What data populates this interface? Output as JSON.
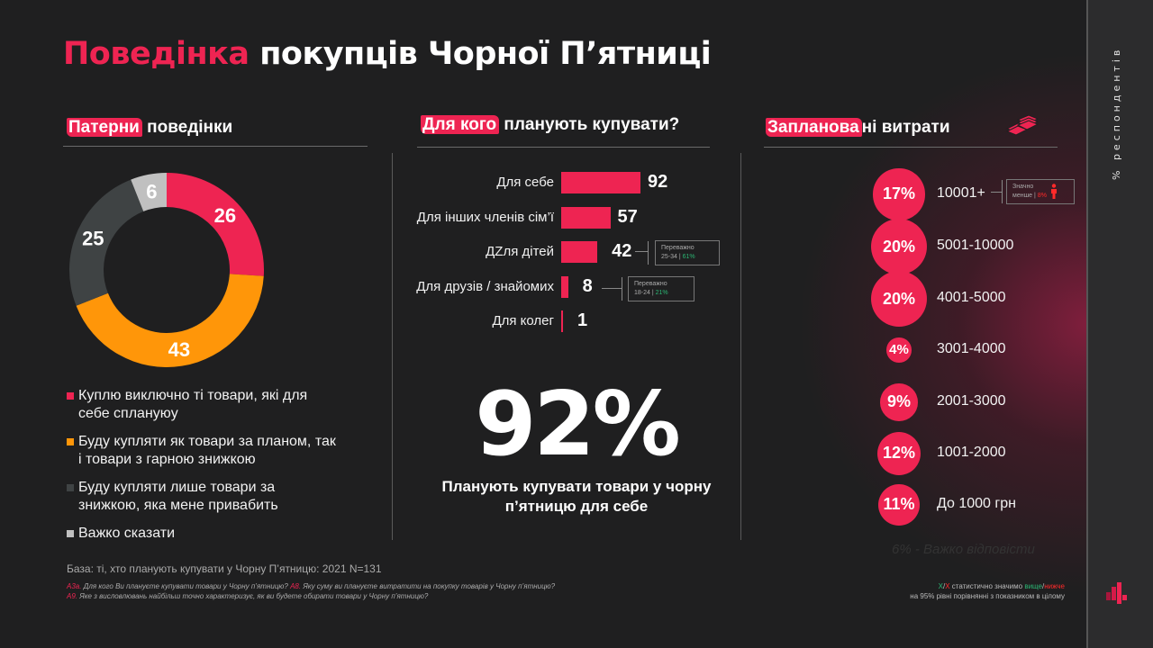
{
  "title": {
    "accent": "Поведінка",
    "rest": " покупців Чорної П’ятниці"
  },
  "side_label": "% респондентів",
  "colors": {
    "accent": "#ee2452",
    "orange": "#ff9609",
    "dark_gray": "#3f4344",
    "light_gray": "#c0c0c0",
    "green": "#2bb673",
    "red": "#ff2a2a"
  },
  "sections": {
    "patterns": {
      "highlight": "Патерни",
      "rest": " поведінки"
    },
    "for_whom": {
      "highlight": "Для кого",
      "rest": " планують  купувати?"
    },
    "spend": {
      "highlight": "Запланова",
      "rest": "ні витрати"
    }
  },
  "chart_data": [
    {
      "type": "pie",
      "title": "Патерни поведінки",
      "donut": true,
      "categories": [
        "Куплю  виключно  ті товари, які для себе сплануюу",
        "Буду купляти  як товари за планом, так і товари з гарною знижкою",
        "Буду купляти  лише  товари за знижкою,  яка мене привабить",
        "Важко сказати"
      ],
      "values": [
        26,
        43,
        25,
        6
      ],
      "colors": [
        "#ee2452",
        "#ff9609",
        "#3f4344",
        "#c0c0c0"
      ],
      "legend_position": "bottom"
    },
    {
      "type": "bar",
      "title": "Для кого планують купувати?",
      "orientation": "horizontal",
      "categories": [
        "Для себе",
        "Для інших  членів сім’ї",
        "ДZля дітей",
        "Для друзів / знайомих",
        "Для колег"
      ],
      "values": [
        92,
        57,
        42,
        8,
        1
      ],
      "xlim": [
        0,
        100
      ]
    },
    {
      "type": "scatter",
      "title": "Заплановані витрати",
      "subtype": "bubble",
      "categories": [
        "10001+",
        "5001-10000",
        "4001-5000",
        "3001-4000",
        "2001-3000",
        "1001-2000",
        "До 1000 грн"
      ],
      "values": [
        17,
        20,
        20,
        4,
        9,
        12,
        11
      ],
      "unit": "%",
      "annotation": "6% - Важко відповісти"
    }
  ],
  "legend": [
    {
      "text": "Куплю  виключно  ті товари, які для себе сплануюу",
      "color": "#ee2452"
    },
    {
      "text": "Буду купляти  як товари за планом, так і товари з гарною знижкою",
      "color": "#ff9609"
    },
    {
      "text": "Буду купляти  лише  товари за знижкою,  яка мене привабить",
      "color": "#3f4344"
    },
    {
      "text": "Важко сказати",
      "color": "#c0c0c0"
    }
  ],
  "donut_labels": [
    "26",
    "43",
    "25",
    "6"
  ],
  "bars": [
    {
      "label": "Для себе",
      "value": "92"
    },
    {
      "label": "Для інших  членів сім’ї",
      "value": "57"
    },
    {
      "label": "ДZля дітей",
      "value": "42"
    },
    {
      "label": "Для друзів / знайомих",
      "value": "8"
    },
    {
      "label": "Для колег",
      "value": "1"
    }
  ],
  "notes": {
    "kids": {
      "line1": "Переважно",
      "age": "25-34",
      "pct": "61%"
    },
    "friends": {
      "line1": "Переважно",
      "age": "18-24",
      "pct": "21%"
    },
    "top_spend": {
      "line1": "Значно",
      "line2": "менше",
      "pct": "8%"
    }
  },
  "big_stat": {
    "value": "92%",
    "caption": "Планують купувати товари у чорну п’ятницю для себе"
  },
  "bubbles": [
    {
      "pct": "17%",
      "label": "10001+"
    },
    {
      "pct": "20%",
      "label": "5001-10000"
    },
    {
      "pct": "20%",
      "label": "4001-5000"
    },
    {
      "pct": "4%",
      "label": "3001-4000"
    },
    {
      "pct": "9%",
      "label": "2001-3000"
    },
    {
      "pct": "12%",
      "label": "1001-2000"
    },
    {
      "pct": "11%",
      "label": "До 1000 грн"
    }
  ],
  "hard_answer": "6% - Важко відповісти",
  "footer": {
    "base": "База: ті, хто планують купувати у Чорну П’ятницю: 2021 N=131",
    "q1_code": "А3а.",
    "q1": " Для кого  Ви плануєте  купувати  товари  у Чорну п’ятницю? ",
    "q2_code": "А8.",
    "q2": " Яку суму ви плануєте  витратити   на покупку товарів  у Чорну п’ятницю?",
    "q3_code": "А9.",
    "q3": " Яке з висловлювань найбільш точно  характеризує,  як ви будете  обирати  товари  у Чорну п’ятницю?",
    "sig_x1": "X",
    "sig_slash": "/",
    "sig_x2": "X",
    "sig_text": "  статистично  значимо ",
    "sig_up": "вище",
    "sig_down": "нижче",
    "sig_line2": "на 95% рівні порівнянні з показником  в цілому"
  }
}
